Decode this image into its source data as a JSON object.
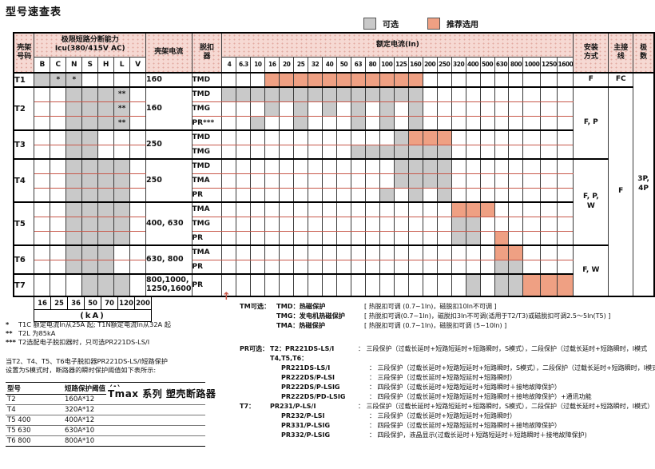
{
  "title": "型号速查表",
  "legend": {
    "optional": "可选",
    "recommended": "推荐选用"
  },
  "colors": {
    "gray": "#c9c9c9",
    "orange": "#efa083",
    "header_bg": "#f6d9d3",
    "line_red": "#c8584a"
  },
  "matrix": {
    "headers": {
      "frame": "壳架|号码",
      "icu_title": "极限短路分断能力|Icu(380/415V AC)",
      "icu_cols": [
        "B",
        "C",
        "N",
        "S",
        "H",
        "L",
        "V"
      ],
      "current": "壳架电流",
      "trip": "脱扣|器",
      "in_title": "额定电流(In)",
      "in_cols": [
        "4",
        "6.3",
        "10",
        "16",
        "20",
        "25",
        "32",
        "40",
        "50",
        "63",
        "80",
        "100",
        "125",
        "160",
        "200",
        "250",
        "320",
        "400",
        "500",
        "630",
        "800",
        "1000",
        "1250",
        "1600"
      ],
      "install": "安装|方式",
      "wiring": "主接|线",
      "poles": "极|数"
    },
    "rows": [
      {
        "frame": "T1",
        "frame_rows": 1,
        "current": [
          "160"
        ],
        "current_rows": 1,
        "icu": [
          "g",
          "g*",
          "g*",
          "",
          "",
          "",
          ""
        ],
        "trip": "TMD",
        "g": [],
        "o": [
          "16",
          "20",
          "25",
          "32",
          "40",
          "50",
          "63",
          "80",
          "100",
          "125",
          "160"
        ],
        "spans": [
          {
            "key": "install",
            "label": "F",
            "rows": 1
          },
          {
            "key": "wiring",
            "label": "FC",
            "rows": 1
          },
          {
            "key": "poles",
            "label": "3P,|4P",
            "rows": 15
          }
        ]
      },
      {
        "frame": "T2",
        "frame_rows": 3,
        "current": [
          "160"
        ],
        "current_rows": 3,
        "icu": [
          "",
          "",
          "g",
          "g",
          "g",
          "g**",
          ""
        ],
        "trip": "TMD",
        "g": [
          "4",
          "6.3",
          "10",
          "16",
          "20",
          "25",
          "32",
          "40",
          "50",
          "63",
          "80",
          "100",
          "125",
          "160"
        ],
        "o": [],
        "spans": [
          {
            "key": "install",
            "label": "F, P",
            "rows": 5
          },
          {
            "key": "wiring",
            "label": "F",
            "rows": 14
          }
        ]
      },
      {
        "icu": [
          "",
          "",
          "g",
          "g",
          "g",
          "g**",
          ""
        ],
        "trip": "TMG",
        "g": [
          "16",
          "25",
          "40",
          "63",
          "100",
          "160"
        ],
        "o": []
      },
      {
        "icu": [
          "",
          "",
          "g",
          "g",
          "g",
          "g**",
          ""
        ],
        "trip": "PR***",
        "g": [
          "10",
          "25",
          "63",
          "100",
          "160"
        ],
        "o": []
      },
      {
        "frame": "T3",
        "frame_rows": 2,
        "current": [
          "250"
        ],
        "current_rows": 2,
        "icu": [
          "",
          "",
          "g",
          "g",
          "",
          "",
          ""
        ],
        "trip": "TMD",
        "g": [
          "125"
        ],
        "o": [
          "160",
          "200",
          "250"
        ]
      },
      {
        "icu": [
          "",
          "",
          "g",
          "g",
          "",
          "",
          ""
        ],
        "trip": "TMG",
        "g": [
          "63",
          "80",
          "100",
          "125",
          "160",
          "200",
          "250"
        ],
        "o": []
      },
      {
        "frame": "T4",
        "frame_rows": 3,
        "current": [
          "250"
        ],
        "current_rows": 3,
        "icu": [
          "",
          "",
          "g",
          "g",
          "g",
          "g",
          ""
        ],
        "trip": "TMD",
        "g": [
          "125",
          "160",
          "200",
          "250"
        ],
        "o": [],
        "spans": [
          {
            "key": "install",
            "label": "F, P,|W",
            "rows": 6
          }
        ]
      },
      {
        "icu": [
          "",
          "",
          "g",
          "g",
          "g",
          "g",
          ""
        ],
        "trip": "TMA",
        "g": [
          "125",
          "160",
          "200",
          "250"
        ],
        "o": []
      },
      {
        "icu": [
          "",
          "",
          "g",
          "g",
          "g",
          "g",
          ""
        ],
        "trip": "PR",
        "g": [
          "100",
          "160",
          "250"
        ],
        "o": []
      },
      {
        "frame": "T5",
        "frame_rows": 3,
        "current": [
          "400, 630"
        ],
        "current_rows": 3,
        "icu": [
          "",
          "",
          "g",
          "g",
          "g",
          "g",
          ""
        ],
        "trip": "TMA",
        "g": [],
        "o": [
          "320",
          "400",
          "500"
        ]
      },
      {
        "icu": [
          "",
          "",
          "g",
          "g",
          "g",
          "g",
          ""
        ],
        "trip": "TMG",
        "g": [
          "320",
          "400"
        ],
        "o": []
      },
      {
        "icu": [
          "",
          "",
          "g",
          "g",
          "g",
          "g",
          ""
        ],
        "trip": "PR",
        "g": [
          "320",
          "400"
        ],
        "o": [
          "630"
        ]
      },
      {
        "frame": "T6",
        "frame_rows": 2,
        "current": [
          "630, 800"
        ],
        "current_rows": 2,
        "icu": [
          "",
          "",
          "g",
          "g",
          "g",
          "",
          ""
        ],
        "trip": "TMA",
        "g": [],
        "o": [
          "630",
          "800"
        ],
        "spans": [
          {
            "key": "install",
            "label": "F, W",
            "rows": 3
          }
        ]
      },
      {
        "icu": [
          "",
          "",
          "g",
          "g",
          "g",
          "",
          ""
        ],
        "trip": "PR",
        "g": [
          "630",
          "800"
        ],
        "o": []
      },
      {
        "frame": "T7",
        "frame_rows": 1,
        "current": [
          "800,1000,",
          "1250,1600"
        ],
        "current_rows": 1,
        "icu": [
          "",
          "",
          "",
          "g",
          "g",
          "g",
          ""
        ],
        "trip": "PR",
        "g": [
          "400",
          "630",
          "800"
        ],
        "o": [
          "1000",
          "1250",
          "1600"
        ],
        "tall": true
      }
    ],
    "ka": {
      "values": [
        "16",
        "25",
        "36",
        "50",
        "70",
        "120",
        "200"
      ],
      "label": "(kA)"
    }
  },
  "footnotes": [
    {
      "mark": "*",
      "text": "T1C 额定电流In从25A 起; T1N额定电流In从32A 起"
    },
    {
      "mark": "**",
      "text": "T2L 为85kA"
    },
    {
      "mark": "***",
      "text": "T2选配电子脱扣器时，只可选PR221DS-LS/I"
    }
  ],
  "paragraph": [
    "当T2、T4、T5、T6电子脱扣器PR221DS-LS/I短路保护",
    "设置为S模式时，断路器的瞬时保护阈值如下表所示:"
  ],
  "threshold_table": {
    "headers": [
      "型号",
      "短路保护阈值（A）"
    ],
    "rows": [
      [
        "T2",
        "160A*12"
      ],
      [
        "T4",
        "320A*12"
      ],
      [
        "T5 400",
        "400A*12"
      ],
      [
        "T5 630",
        "630A*10"
      ],
      [
        "T6 800",
        "800A*10"
      ]
    ]
  },
  "overlay_text": "Tmax 系列 塑壳断路器",
  "tm_notes": {
    "prefix": "TM可选：",
    "items": [
      {
        "name": "TMD：",
        "desc": "热磁保护",
        "bracket": "[ 热脱扣可调 (0.7~1In)，磁脱扣10In不可调 ]"
      },
      {
        "name": "TMG：",
        "desc": "发电机热磁保护",
        "bracket": "[ 热脱扣可调(0.7~1In)，磁脱扣3In不可调(适用于T2/T3)或磁脱扣可调2.5～5In(T5) ]"
      },
      {
        "name": "TMA：",
        "desc": "热磁保护",
        "bracket": "[ 热脱扣可调 (0.7~1In)，磁脱扣可调 (5~10In) ]"
      }
    ]
  },
  "pr_notes": {
    "prefix": "PR可选：",
    "items": [
      {
        "pre": "PR可选：",
        "model": "T2：PR221DS-LS/I",
        "desc": "三段保护（过载长延时+短路短延时+短路瞬时，S模式），二段保护（过载长延时+短路瞬时，I模式",
        "indent": false
      },
      {
        "pre": "",
        "model": "T4,T5,T6：",
        "desc": "",
        "indent": false
      },
      {
        "pre": "",
        "model": "PR221DS-LS/I",
        "desc": "三段保护（过载长延时+短路短延时+短路瞬时，S模式），二段保护（过载长延时+短路瞬时，I模式",
        "indent": true
      },
      {
        "pre": "",
        "model": "PR222DS/P-LSI",
        "desc": "三段保护（过载长延时+短路短延时+短路瞬时）",
        "indent": true
      },
      {
        "pre": "",
        "model": "PR222DS/P-LSIG",
        "desc": "四段保护（过载长延时+短路短延时+短路瞬时＋接地故障保护）",
        "indent": true
      },
      {
        "pre": "",
        "model": "PR222DS/PD-LSIG",
        "desc": "四段保护（过载长延时+短路短延时+短路瞬时＋接地故障保护）+通讯功能",
        "indent": true
      },
      {
        "pre": "T7：",
        "model": "PR231/P-LS/I",
        "desc": "三段保护（过载长延时+短路短延时+短路瞬时，S模式），二段保护（过载长延时+短路瞬时，I模式）",
        "indent": false
      },
      {
        "pre": "",
        "model": "PR232/P-LSI",
        "desc": "三段保护（过载长延时+短路短延时+短路瞬时）",
        "indent": true
      },
      {
        "pre": "",
        "model": "PR331/P-LSIG",
        "desc": "四段保护（过载长延时+短路短延时+短路瞬时＋接地故障保护）",
        "indent": true
      },
      {
        "pre": "",
        "model": "PR332/P-LSIG",
        "desc": "四段保护，液晶显示(过载长延时＋短路短延时＋短路瞬时＋接地故障保护)",
        "indent": true
      }
    ]
  },
  "arrow": "↑"
}
